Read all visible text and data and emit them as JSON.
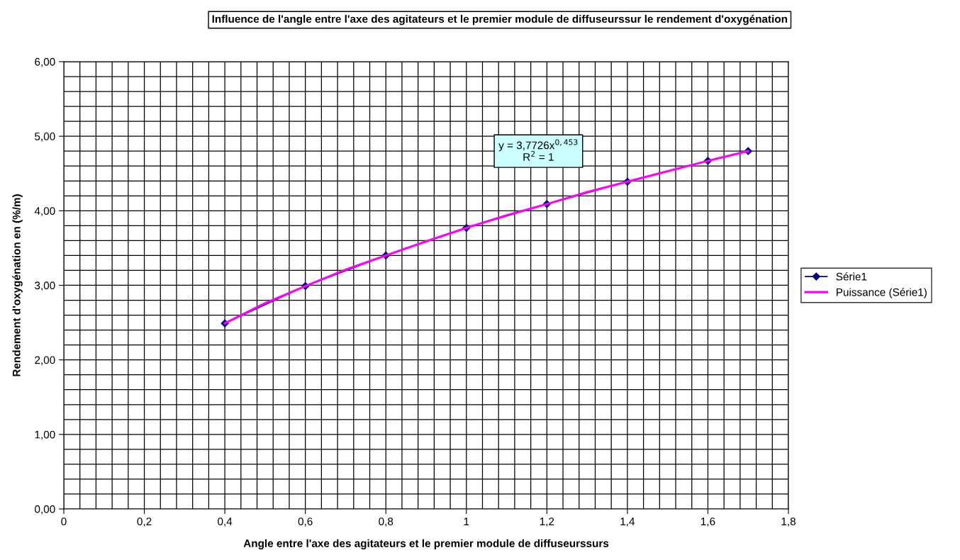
{
  "chart_data": {
    "type": "line",
    "title": "Influence de l'angle entre l'axe des agitateurs et le premier module de diffuseurssur le rendement d'oxygénation",
    "xlabel": "Angle entre l'axe des agitateurs et le premier module de diffuseurssurs",
    "ylabel": "Rendement d'oxygénation en (%/m)",
    "x": [
      0.4,
      0.6,
      0.8,
      1,
      1.2,
      1.4,
      1.6,
      1.7
    ],
    "series": [
      {
        "name": "Série1",
        "color": "#000080",
        "marker": "diamond",
        "values": [
          2.49,
          2.99,
          3.4,
          3.77,
          4.09,
          4.39,
          4.67,
          4.8
        ]
      },
      {
        "name": "Puissance (Série1)",
        "color": "#ff00ff",
        "marker": "none",
        "x": [
          0.4,
          0.5,
          0.6,
          0.7,
          0.8,
          0.9,
          1,
          1.1,
          1.2,
          1.3,
          1.4,
          1.5,
          1.6,
          1.7
        ],
        "values": [
          2.49,
          2.76,
          2.99,
          3.21,
          3.4,
          3.59,
          3.77,
          3.94,
          4.09,
          4.25,
          4.39,
          4.53,
          4.67,
          4.8
        ]
      }
    ],
    "annotations": [
      "y = 3,7726x$^{0,453}$\nR$^{2}$ = 1"
    ],
    "xlim": [
      0,
      1.8
    ],
    "xticks": [
      0,
      {
        "value": 0.2,
        "label": "0,2"
      },
      {
        "value": 0.4,
        "label": "0,4"
      },
      {
        "value": 0.6,
        "label": "0,6"
      },
      {
        "value": 0.8,
        "label": "0,8"
      },
      1,
      {
        "value": 1.2,
        "label": "1,2"
      },
      {
        "value": 1.4,
        "label": "1,4"
      },
      {
        "value": 1.6,
        "label": "1,6"
      },
      {
        "value": 1.8,
        "label": "1,8"
      },
      {
        "value": 0.04,
        "label": null
      },
      {
        "value": 0.08,
        "label": null
      },
      {
        "value": 0.12,
        "label": null
      },
      {
        "value": 0.16,
        "label": null
      },
      {
        "value": 0.24,
        "label": null
      },
      {
        "value": 0.28,
        "label": null
      },
      {
        "value": 0.32,
        "label": null
      },
      {
        "value": 0.36,
        "label": null
      },
      {
        "value": 0.44,
        "label": null
      },
      {
        "value": 0.48,
        "label": null
      },
      {
        "value": 0.52,
        "label": null
      },
      {
        "value": 0.56,
        "label": null
      },
      {
        "value": 0.64,
        "label": null
      },
      {
        "value": 0.68,
        "label": null
      },
      {
        "value": 0.72,
        "label": null
      },
      {
        "value": 0.76,
        "label": null
      },
      {
        "value": 0.84,
        "label": null
      },
      {
        "value": 0.88,
        "label": null
      },
      {
        "value": 0.92,
        "label": null
      },
      {
        "value": 0.96,
        "label": null
      },
      {
        "value": 1.04,
        "label": null
      },
      {
        "value": 1.08,
        "label": null
      },
      {
        "value": 1.12,
        "label": null
      },
      {
        "value": 1.16,
        "label": null
      },
      {
        "value": 1.24,
        "label": null
      },
      {
        "value": 1.28,
        "label": null
      },
      {
        "value": 1.32,
        "label": null
      },
      {
        "value": 1.36,
        "label": null
      },
      {
        "value": 1.44,
        "label": null
      },
      {
        "value": 1.48,
        "label": null
      },
      {
        "value": 1.52,
        "label": null
      },
      {
        "value": 1.56,
        "label": null
      },
      {
        "value": 1.64,
        "label": null
      },
      {
        "value": 1.68,
        "label": null
      },
      {
        "value": 1.72,
        "label": null
      },
      {
        "value": 1.76,
        "label": null
      }
    ],
    "ylim": [
      0,
      6
    ],
    "yticks": [
      {
        "value": 0,
        "label": "0,00"
      },
      {
        "value": 1,
        "label": "1,00"
      },
      {
        "value": 2,
        "label": "2,00"
      },
      {
        "value": 3,
        "label": "3,00"
      },
      {
        "value": 4,
        "label": "4,00"
      },
      {
        "value": 5,
        "label": "5,00"
      },
      {
        "value": 6,
        "label": "6,00"
      },
      {
        "value": 0.2,
        "label": null
      },
      {
        "value": 0.4,
        "label": null
      },
      {
        "value": 0.6,
        "label": null
      },
      {
        "value": 0.8,
        "label": null
      },
      {
        "value": 1.2,
        "label": null
      },
      {
        "value": 1.4,
        "label": null
      },
      {
        "value": 1.6,
        "label": null
      },
      {
        "value": 1.8,
        "label": null
      },
      {
        "value": 2.2,
        "label": null
      },
      {
        "value": 2.4,
        "label": null
      },
      {
        "value": 2.6,
        "label": null
      },
      {
        "value": 2.8,
        "label": null
      },
      {
        "value": 3.2,
        "label": null
      },
      {
        "value": 3.4,
        "label": null
      },
      {
        "value": 3.6,
        "label": null
      },
      {
        "value": 3.8,
        "label": null
      },
      {
        "value": 4.2,
        "label": null
      },
      {
        "value": 4.4,
        "label": null
      },
      {
        "value": 4.6,
        "label": null
      },
      {
        "value": 4.8,
        "label": null
      },
      {
        "value": 5.2,
        "label": null
      },
      {
        "value": 5.4,
        "label": null
      },
      {
        "value": 5.6,
        "label": null
      },
      {
        "value": 5.8,
        "label": null
      }
    ],
    "grid": true,
    "legend": "right"
  }
}
